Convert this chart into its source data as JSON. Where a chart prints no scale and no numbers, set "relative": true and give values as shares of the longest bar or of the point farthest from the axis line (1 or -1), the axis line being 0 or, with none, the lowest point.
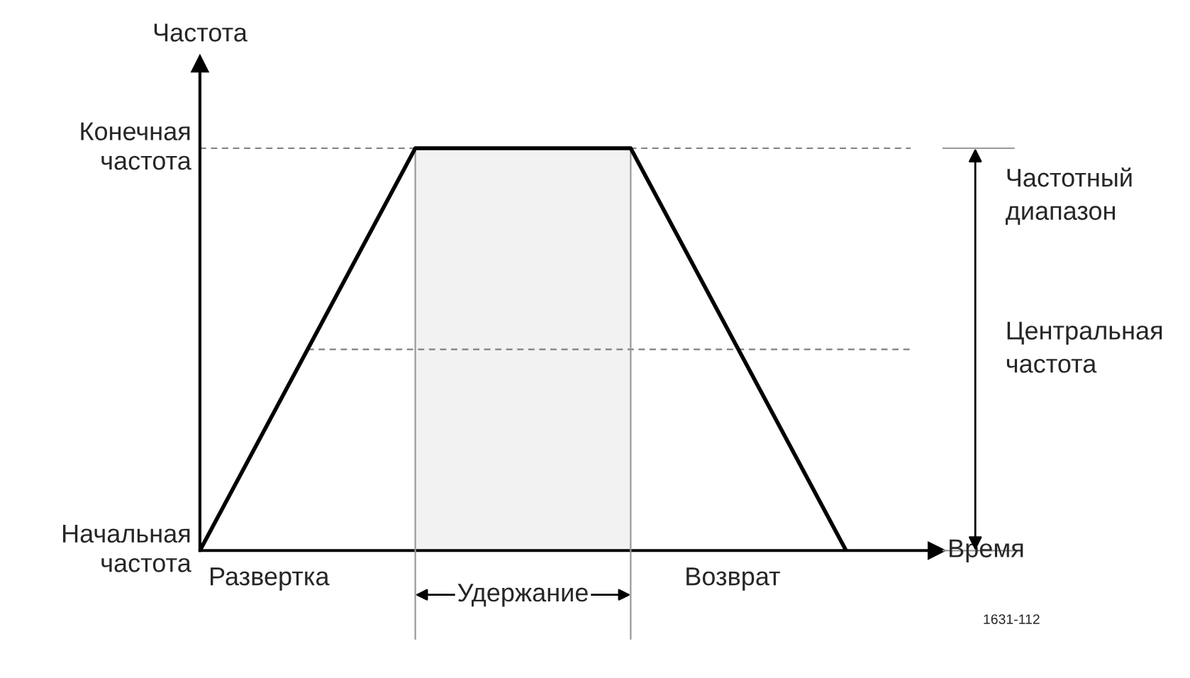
{
  "chart_data": {
    "type": "line",
    "relative": true,
    "categories": [
      null,
      null,
      null,
      null
    ],
    "series": [
      {
        "color": "#000000",
        "values": [
          0,
          1,
          1,
          0
        ]
      },
      {
        "type": "area",
        "color": "#f2f2f2",
        "values": [
          null,
          1,
          1,
          null
        ]
      }
    ],
    "xlabel": "Время",
    "ylabel": "Частота",
    "ref_lines": [
      {
        "axis": "y",
        "value": 1,
        "label": null,
        "line_style": "dashed",
        "color": "#808080"
      },
      {
        "axis": "y",
        "value": 0.5,
        "label": null,
        "line_style": "dashed",
        "color": "#808080"
      }
    ],
    "annotations": [
      "Начальная частота",
      "Конечная частота",
      "Развертка",
      "Удержание",
      "Возврат",
      "Частотный диапазон",
      "Центральная частота",
      "1631-112"
    ]
  }
}
